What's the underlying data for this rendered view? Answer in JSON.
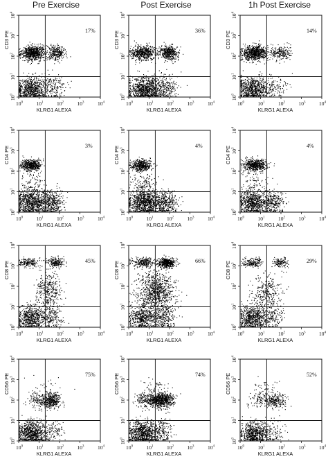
{
  "columns": [
    "Pre Exercise",
    "Post Exercise",
    "1h Post Exercise"
  ],
  "x_axis_label": "KLRG1 ALEXA",
  "tick_base": "10",
  "tick_exponents": [
    "0",
    "1",
    "2",
    "3",
    "4"
  ],
  "rows": [
    {
      "y_axis_label": "CD3 PE",
      "percentages": [
        "17%",
        "36%",
        "14%"
      ]
    },
    {
      "y_axis_label": "CD4 PE",
      "percentages": [
        "3%",
        "4%",
        "4%"
      ]
    },
    {
      "y_axis_label": "CD8 PE",
      "percentages": [
        "45%",
        "66%",
        "29%"
      ]
    },
    {
      "y_axis_label": "CD56 PE",
      "percentages": [
        "75%",
        "74%",
        "52%"
      ]
    }
  ],
  "dot_color": "#000000",
  "chart_data": {
    "type": "scatter",
    "layout": "4 rows x 3 columns of flow cytometry dot plots",
    "columns": [
      "Pre Exercise",
      "Post Exercise",
      "1h Post Exercise"
    ],
    "xlabel": "KLRG1 ALEXA",
    "xscale": "log",
    "yscale": "log",
    "xlim": [
      1,
      10000
    ],
    "ylim": [
      1,
      10000
    ],
    "quadrant_gates": {
      "x": 20,
      "y": 10
    },
    "panels": [
      {
        "row": 0,
        "col": 0,
        "ylabel": "CD3 PE",
        "annotation": "17%",
        "clusters": [
          {
            "cx": 5,
            "cy": 150,
            "sx": 0.3,
            "sy": 0.18,
            "n": 700
          },
          {
            "cx": 70,
            "cy": 150,
            "sx": 0.22,
            "sy": 0.18,
            "n": 260
          },
          {
            "cx": 4,
            "cy": 2.5,
            "sx": 0.35,
            "sy": 0.3,
            "n": 650
          },
          {
            "cx": 40,
            "cy": 3,
            "sx": 0.35,
            "sy": 0.3,
            "n": 200
          }
        ]
      },
      {
        "row": 0,
        "col": 1,
        "ylabel": "CD3 PE",
        "annotation": "36%",
        "clusters": [
          {
            "cx": 5,
            "cy": 150,
            "sx": 0.3,
            "sy": 0.18,
            "n": 550
          },
          {
            "cx": 90,
            "cy": 150,
            "sx": 0.22,
            "sy": 0.18,
            "n": 420
          },
          {
            "cx": 6,
            "cy": 2.5,
            "sx": 0.4,
            "sy": 0.3,
            "n": 850
          },
          {
            "cx": 50,
            "cy": 3,
            "sx": 0.35,
            "sy": 0.3,
            "n": 250
          }
        ]
      },
      {
        "row": 0,
        "col": 2,
        "ylabel": "CD3 PE",
        "annotation": "14%",
        "clusters": [
          {
            "cx": 5,
            "cy": 150,
            "sx": 0.3,
            "sy": 0.18,
            "n": 700
          },
          {
            "cx": 90,
            "cy": 150,
            "sx": 0.25,
            "sy": 0.18,
            "n": 220
          },
          {
            "cx": 4,
            "cy": 2.5,
            "sx": 0.35,
            "sy": 0.3,
            "n": 650
          },
          {
            "cx": 40,
            "cy": 3,
            "sx": 0.35,
            "sy": 0.3,
            "n": 150
          }
        ]
      },
      {
        "row": 1,
        "col": 0,
        "ylabel": "CD4 PE",
        "annotation": "3%",
        "clusters": [
          {
            "cx": 4,
            "cy": 200,
            "sx": 0.25,
            "sy": 0.15,
            "n": 480
          },
          {
            "cx": 5,
            "cy": 20,
            "sx": 0.3,
            "sy": 0.35,
            "n": 110
          },
          {
            "cx": 4,
            "cy": 3,
            "sx": 0.35,
            "sy": 0.3,
            "n": 700
          },
          {
            "cx": 40,
            "cy": 3,
            "sx": 0.3,
            "sy": 0.3,
            "n": 400
          }
        ]
      },
      {
        "row": 1,
        "col": 1,
        "ylabel": "CD4 PE",
        "annotation": "4%",
        "clusters": [
          {
            "cx": 4,
            "cy": 200,
            "sx": 0.25,
            "sy": 0.15,
            "n": 420
          },
          {
            "cx": 6,
            "cy": 20,
            "sx": 0.3,
            "sy": 0.35,
            "n": 140
          },
          {
            "cx": 6,
            "cy": 3,
            "sx": 0.4,
            "sy": 0.3,
            "n": 900
          },
          {
            "cx": 60,
            "cy": 3,
            "sx": 0.3,
            "sy": 0.3,
            "n": 350
          }
        ]
      },
      {
        "row": 1,
        "col": 2,
        "ylabel": "CD4 PE",
        "annotation": "4%",
        "clusters": [
          {
            "cx": 5,
            "cy": 200,
            "sx": 0.28,
            "sy": 0.15,
            "n": 550
          },
          {
            "cx": 5,
            "cy": 20,
            "sx": 0.3,
            "sy": 0.35,
            "n": 80
          },
          {
            "cx": 4,
            "cy": 3,
            "sx": 0.35,
            "sy": 0.3,
            "n": 650
          },
          {
            "cx": 40,
            "cy": 3,
            "sx": 0.3,
            "sy": 0.3,
            "n": 300
          }
        ]
      },
      {
        "row": 2,
        "col": 0,
        "ylabel": "CD8 PE",
        "annotation": "45%",
        "clusters": [
          {
            "cx": 3,
            "cy": 1500,
            "sx": 0.25,
            "sy": 0.12,
            "n": 180
          },
          {
            "cx": 60,
            "cy": 1500,
            "sx": 0.2,
            "sy": 0.12,
            "n": 200
          },
          {
            "cx": 30,
            "cy": 60,
            "sx": 0.3,
            "sy": 0.45,
            "n": 350
          },
          {
            "cx": 4,
            "cy": 3,
            "sx": 0.35,
            "sy": 0.3,
            "n": 600
          },
          {
            "cx": 40,
            "cy": 3,
            "sx": 0.3,
            "sy": 0.3,
            "n": 180
          }
        ]
      },
      {
        "row": 2,
        "col": 1,
        "ylabel": "CD8 PE",
        "annotation": "66%",
        "clusters": [
          {
            "cx": 5,
            "cy": 1500,
            "sx": 0.3,
            "sy": 0.12,
            "n": 250
          },
          {
            "cx": 70,
            "cy": 1500,
            "sx": 0.2,
            "sy": 0.12,
            "n": 450
          },
          {
            "cx": 20,
            "cy": 60,
            "sx": 0.45,
            "sy": 0.5,
            "n": 900
          },
          {
            "cx": 5,
            "cy": 3,
            "sx": 0.35,
            "sy": 0.3,
            "n": 500
          },
          {
            "cx": 50,
            "cy": 3,
            "sx": 0.3,
            "sy": 0.3,
            "n": 250
          }
        ]
      },
      {
        "row": 2,
        "col": 2,
        "ylabel": "CD8 PE",
        "annotation": "29%",
        "clusters": [
          {
            "cx": 4,
            "cy": 1500,
            "sx": 0.25,
            "sy": 0.12,
            "n": 180
          },
          {
            "cx": 90,
            "cy": 1500,
            "sx": 0.2,
            "sy": 0.12,
            "n": 130
          },
          {
            "cx": 20,
            "cy": 60,
            "sx": 0.35,
            "sy": 0.45,
            "n": 300
          },
          {
            "cx": 4,
            "cy": 3,
            "sx": 0.35,
            "sy": 0.3,
            "n": 650
          },
          {
            "cx": 40,
            "cy": 3,
            "sx": 0.3,
            "sy": 0.3,
            "n": 150
          }
        ]
      },
      {
        "row": 3,
        "col": 0,
        "ylabel": "CD56 PE",
        "annotation": "75%",
        "clusters": [
          {
            "cx": 40,
            "cy": 100,
            "sx": 0.22,
            "sy": 0.18,
            "n": 380
          },
          {
            "cx": 8,
            "cy": 100,
            "sx": 0.25,
            "sy": 0.2,
            "n": 120
          },
          {
            "cx": 20,
            "cy": 400,
            "sx": 0.4,
            "sy": 0.3,
            "n": 40
          },
          {
            "cx": 4,
            "cy": 2.5,
            "sx": 0.35,
            "sy": 0.3,
            "n": 750
          },
          {
            "cx": 40,
            "cy": 3,
            "sx": 0.3,
            "sy": 0.3,
            "n": 120
          }
        ]
      },
      {
        "row": 3,
        "col": 1,
        "ylabel": "CD56 PE",
        "annotation": "74%",
        "clusters": [
          {
            "cx": 40,
            "cy": 100,
            "sx": 0.28,
            "sy": 0.18,
            "n": 650
          },
          {
            "cx": 8,
            "cy": 100,
            "sx": 0.28,
            "sy": 0.2,
            "n": 220
          },
          {
            "cx": 20,
            "cy": 400,
            "sx": 0.4,
            "sy": 0.3,
            "n": 50
          },
          {
            "cx": 5,
            "cy": 2.5,
            "sx": 0.4,
            "sy": 0.3,
            "n": 800
          },
          {
            "cx": 40,
            "cy": 3,
            "sx": 0.3,
            "sy": 0.3,
            "n": 150
          }
        ]
      },
      {
        "row": 3,
        "col": 2,
        "ylabel": "CD56 PE",
        "annotation": "52%",
        "clusters": [
          {
            "cx": 50,
            "cy": 100,
            "sx": 0.25,
            "sy": 0.18,
            "n": 230
          },
          {
            "cx": 8,
            "cy": 100,
            "sx": 0.25,
            "sy": 0.2,
            "n": 100
          },
          {
            "cx": 20,
            "cy": 400,
            "sx": 0.4,
            "sy": 0.3,
            "n": 40
          },
          {
            "cx": 5,
            "cy": 2.5,
            "sx": 0.35,
            "sy": 0.3,
            "n": 650
          },
          {
            "cx": 40,
            "cy": 3,
            "sx": 0.3,
            "sy": 0.3,
            "n": 100
          }
        ]
      }
    ]
  }
}
